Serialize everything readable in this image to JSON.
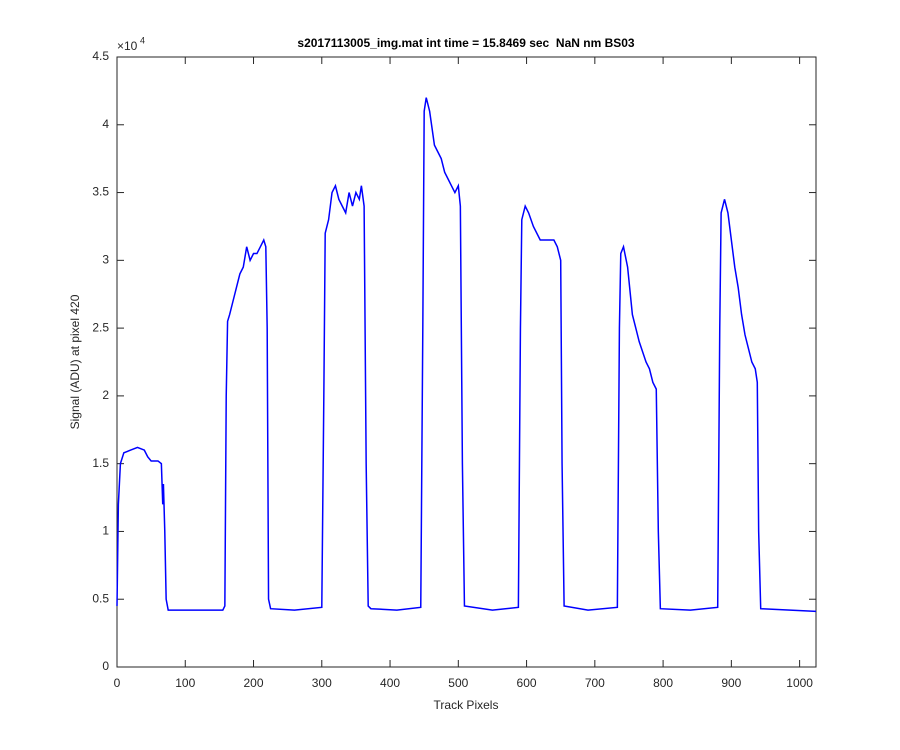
{
  "chart_data": {
    "type": "line",
    "title": "s2017113005_img.mat int time = 15.8469 sec  NaN nm BS03",
    "x_label": "Track Pixels",
    "y_label": "Signal (ADU) at pixel 420",
    "y_scale_label": "×10",
    "y_scale_exponent": "4",
    "xlim": [
      0,
      1024
    ],
    "xticks": [
      0,
      100,
      200,
      300,
      400,
      500,
      600,
      700,
      800,
      900,
      1000
    ],
    "ylim": [
      0,
      4.5
    ],
    "yticks": [
      0,
      0.5,
      1,
      1.5,
      2,
      2.5,
      3,
      3.5,
      4,
      4.5
    ],
    "x": [
      0,
      2,
      5,
      10,
      20,
      30,
      40,
      45,
      50,
      60,
      65,
      67,
      68,
      70,
      72,
      75,
      120,
      155,
      158,
      160,
      162,
      165,
      170,
      175,
      180,
      185,
      190,
      195,
      200,
      205,
      210,
      215,
      218,
      220,
      222,
      225,
      260,
      300,
      303,
      305,
      310,
      315,
      320,
      325,
      330,
      335,
      340,
      345,
      350,
      355,
      358,
      362,
      365,
      368,
      372,
      410,
      445,
      448,
      450,
      453,
      458,
      465,
      470,
      475,
      480,
      485,
      490,
      495,
      500,
      503,
      506,
      509,
      550,
      588,
      591,
      593,
      598,
      603,
      610,
      620,
      630,
      640,
      645,
      650,
      652,
      655,
      690,
      733,
      736,
      738,
      742,
      748,
      755,
      765,
      775,
      780,
      785,
      790,
      793,
      796,
      840,
      880,
      883,
      885,
      890,
      895,
      905,
      910,
      915,
      920,
      925,
      930,
      935,
      938,
      940,
      943,
      1024
    ],
    "series": [
      {
        "name": "Signal",
        "color": "#0000ff",
        "values": [
          0.45,
          1.2,
          1.5,
          1.58,
          1.6,
          1.62,
          1.6,
          1.55,
          1.52,
          1.52,
          1.5,
          1.2,
          1.35,
          1.0,
          0.5,
          0.42,
          0.42,
          0.42,
          0.45,
          2.0,
          2.55,
          2.6,
          2.7,
          2.8,
          2.9,
          2.95,
          3.1,
          3.0,
          3.05,
          3.05,
          3.1,
          3.15,
          3.1,
          2.5,
          0.5,
          0.43,
          0.42,
          0.44,
          2.0,
          3.2,
          3.3,
          3.5,
          3.55,
          3.45,
          3.4,
          3.35,
          3.5,
          3.4,
          3.5,
          3.45,
          3.55,
          3.4,
          1.5,
          0.45,
          0.43,
          0.42,
          0.44,
          2.5,
          4.1,
          4.2,
          4.1,
          3.85,
          3.8,
          3.75,
          3.65,
          3.6,
          3.55,
          3.5,
          3.55,
          3.4,
          1.5,
          0.45,
          0.42,
          0.44,
          2.5,
          3.3,
          3.4,
          3.35,
          3.25,
          3.15,
          3.15,
          3.15,
          3.1,
          3.0,
          1.5,
          0.45,
          0.42,
          0.44,
          2.5,
          3.05,
          3.1,
          2.95,
          2.6,
          2.4,
          2.25,
          2.2,
          2.1,
          2.05,
          1.0,
          0.43,
          0.42,
          0.44,
          2.5,
          3.35,
          3.45,
          3.35,
          2.95,
          2.8,
          2.6,
          2.45,
          2.35,
          2.25,
          2.2,
          2.1,
          1.0,
          0.43,
          0.41
        ]
      }
    ]
  }
}
